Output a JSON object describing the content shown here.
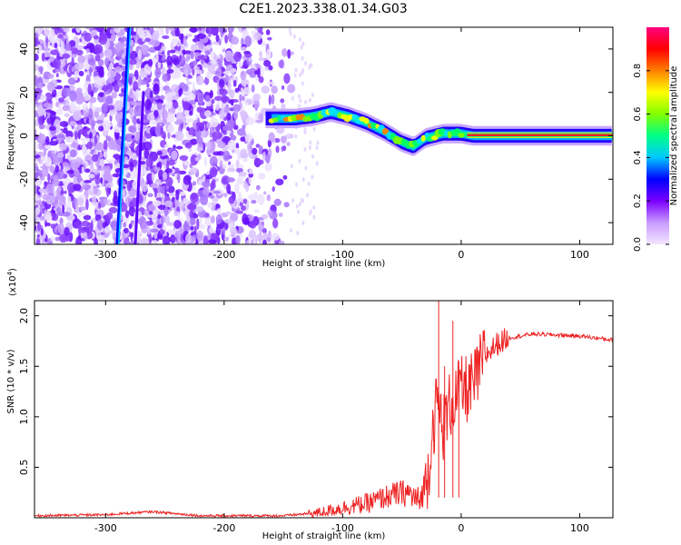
{
  "title": "C2E1.2023.338.01.34.G03",
  "chart_data": [
    {
      "type": "heatmap",
      "xlabel": "Height of straight line (km)",
      "ylabel": "Frequency (Hz)",
      "xlim": [
        -360,
        128
      ],
      "ylim": [
        -50,
        50
      ],
      "xticks": [
        -300,
        -200,
        -100,
        0,
        100
      ],
      "yticks": [
        -40,
        -20,
        0,
        20,
        40
      ],
      "colorbar": {
        "label": "Normalized spectral amplitude",
        "range": [
          0.0,
          1.0
        ],
        "ticks": [
          0.0,
          0.2,
          0.4,
          0.6,
          0.8
        ],
        "colormap": [
          "#f4e6ff",
          "#c89bff",
          "#7a00ff",
          "#0000ff",
          "#00c8ff",
          "#00ff88",
          "#80ff00",
          "#ffff00",
          "#ff8000",
          "#ff0000",
          "#ff0080"
        ]
      },
      "ridge": [
        {
          "x": -165,
          "y": 8
        },
        {
          "x": -140,
          "y": 8
        },
        {
          "x": -125,
          "y": 9
        },
        {
          "x": -110,
          "y": 11
        },
        {
          "x": -95,
          "y": 9
        },
        {
          "x": -80,
          "y": 6
        },
        {
          "x": -65,
          "y": 2
        },
        {
          "x": -50,
          "y": -3
        },
        {
          "x": -40,
          "y": -5
        },
        {
          "x": -30,
          "y": -1
        },
        {
          "x": -15,
          "y": 1
        },
        {
          "x": 0,
          "y": 1
        },
        {
          "x": 10,
          "y": 0
        },
        {
          "x": 128,
          "y": 0
        }
      ]
    },
    {
      "type": "line",
      "xlabel": "Height of straight line (km)",
      "ylabel": "SNR (10 * v/v)",
      "yscale_label": "(x10^4)",
      "xlim": [
        -360,
        128
      ],
      "ylim": [
        0,
        2.15
      ],
      "xticks": [
        -300,
        -200,
        -100,
        0,
        100
      ],
      "yticks": [
        0.5,
        1.0,
        1.5,
        2.0
      ],
      "series": [
        {
          "color": "#ee2222",
          "points": [
            {
              "x": -360,
              "y": 0.02
            },
            {
              "x": -300,
              "y": 0.03
            },
            {
              "x": -260,
              "y": 0.06
            },
            {
              "x": -220,
              "y": 0.02
            },
            {
              "x": -150,
              "y": 0.02
            },
            {
              "x": -120,
              "y": 0.05
            },
            {
              "x": -100,
              "y": 0.1
            },
            {
              "x": -80,
              "y": 0.14
            },
            {
              "x": -60,
              "y": 0.22
            },
            {
              "x": -45,
              "y": 0.25
            },
            {
              "x": -35,
              "y": 0.15
            },
            {
              "x": -28,
              "y": 0.45
            },
            {
              "x": -24,
              "y": 0.9
            },
            {
              "x": -20,
              "y": 1.15
            },
            {
              "x": -15,
              "y": 0.9
            },
            {
              "x": -10,
              "y": 1.1
            },
            {
              "x": -5,
              "y": 1.2
            },
            {
              "x": 0,
              "y": 1.25
            },
            {
              "x": 10,
              "y": 1.3
            },
            {
              "x": 20,
              "y": 1.6
            },
            {
              "x": 30,
              "y": 1.72
            },
            {
              "x": 40,
              "y": 1.78
            },
            {
              "x": 60,
              "y": 1.82
            },
            {
              "x": 80,
              "y": 1.81
            },
            {
              "x": 100,
              "y": 1.8
            },
            {
              "x": 128,
              "y": 1.76
            }
          ]
        }
      ]
    }
  ]
}
